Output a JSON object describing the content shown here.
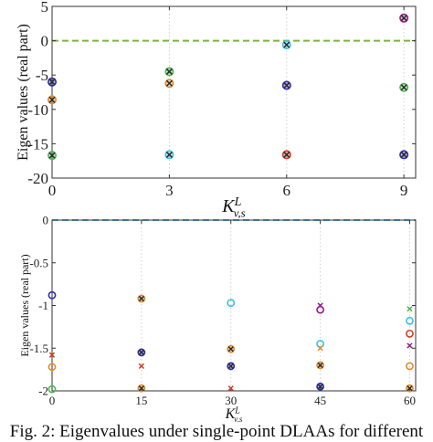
{
  "caption": "Fig. 2: Eigenvalues under single-point DLAAs for different",
  "colors": {
    "axis": "#333333",
    "threshold_top": "#7cb342",
    "threshold_bottom": "#4fb3e8",
    "blue": "#2c2ca8",
    "red": "#d23b1e",
    "green": "#4fb34f",
    "orange": "#e08a2a",
    "cyan": "#3fc0e0",
    "magenta": "#9b1c86"
  },
  "chart_data": [
    {
      "type": "scatter",
      "xlabel_main": "K",
      "xlabel_sup": "L",
      "xlabel_sub": "v,s",
      "ylabel": "Eigen values (real part)",
      "xlim": [
        0,
        9.3
      ],
      "ylim": [
        -20,
        5
      ],
      "xticks": [
        "0",
        "3",
        "6",
        "9"
      ],
      "yticks": [
        "5",
        "0",
        "-5",
        "-10",
        "-15",
        "-20"
      ],
      "threshold_y": 0,
      "points": [
        {
          "x": 0,
          "y": -6,
          "marker": "circle-x",
          "color": "blue"
        },
        {
          "x": 0,
          "y": -8.6,
          "marker": "circle-x",
          "color": "orange"
        },
        {
          "x": 0,
          "y": -16.7,
          "marker": "circle-x",
          "color": "green"
        },
        {
          "x": 3,
          "y": -4.5,
          "marker": "circle-x",
          "color": "green"
        },
        {
          "x": 3,
          "y": -6.2,
          "marker": "circle-x",
          "color": "orange"
        },
        {
          "x": 3,
          "y": -16.6,
          "marker": "circle-x",
          "color": "cyan"
        },
        {
          "x": 6,
          "y": -0.6,
          "marker": "circle-x",
          "color": "cyan"
        },
        {
          "x": 6,
          "y": -6.5,
          "marker": "circle-x",
          "color": "blue"
        },
        {
          "x": 6,
          "y": -16.6,
          "marker": "circle-x",
          "color": "red"
        },
        {
          "x": 9,
          "y": 3.3,
          "marker": "circle-x",
          "color": "magenta"
        },
        {
          "x": 9,
          "y": -6.8,
          "marker": "circle-x",
          "color": "green"
        },
        {
          "x": 9,
          "y": -16.6,
          "marker": "circle-x",
          "color": "blue"
        }
      ]
    },
    {
      "type": "scatter",
      "xlabel_main": "K",
      "xlabel_sup": "L",
      "xlabel_sub": "v,s",
      "ylabel": "Eigen values (real part)",
      "xlim": [
        0,
        61
      ],
      "ylim": [
        -2,
        0
      ],
      "xticks": [
        "0",
        "15",
        "30",
        "45",
        "60"
      ],
      "yticks": [
        "0",
        "-0.5",
        "-1",
        "-1.5",
        "-2"
      ],
      "threshold_y": 0,
      "points": [
        {
          "x": 0,
          "y": -0.88,
          "marker": "circle",
          "color": "blue"
        },
        {
          "x": 0,
          "y": -1.58,
          "marker": "x",
          "color": "red"
        },
        {
          "x": 0,
          "y": -1.72,
          "marker": "circle",
          "color": "orange"
        },
        {
          "x": 0,
          "y": -1.98,
          "marker": "circle",
          "color": "green"
        },
        {
          "x": 15,
          "y": -0.92,
          "marker": "circle-x",
          "color": "orange"
        },
        {
          "x": 15,
          "y": -1.55,
          "marker": "circle-x",
          "color": "blue"
        },
        {
          "x": 15,
          "y": -1.71,
          "marker": "x",
          "color": "red"
        },
        {
          "x": 15,
          "y": -1.97,
          "marker": "circle-x",
          "color": "orange"
        },
        {
          "x": 30,
          "y": -0.97,
          "marker": "circle",
          "color": "cyan"
        },
        {
          "x": 30,
          "y": -1.51,
          "marker": "circle-x",
          "color": "orange"
        },
        {
          "x": 30,
          "y": -1.71,
          "marker": "circle-x",
          "color": "blue"
        },
        {
          "x": 30,
          "y": -1.97,
          "marker": "x",
          "color": "red"
        },
        {
          "x": 45,
          "y": -1.0,
          "marker": "x",
          "color": "magenta"
        },
        {
          "x": 45,
          "y": -1.05,
          "marker": "circle",
          "color": "magenta"
        },
        {
          "x": 45,
          "y": -1.45,
          "marker": "circle",
          "color": "cyan"
        },
        {
          "x": 45,
          "y": -1.5,
          "marker": "x",
          "color": "orange"
        },
        {
          "x": 45,
          "y": -1.7,
          "marker": "circle-x",
          "color": "orange"
        },
        {
          "x": 45,
          "y": -1.95,
          "marker": "circle-x",
          "color": "blue"
        },
        {
          "x": 60,
          "y": -1.04,
          "marker": "x",
          "color": "green"
        },
        {
          "x": 60,
          "y": -1.18,
          "marker": "circle",
          "color": "cyan"
        },
        {
          "x": 60,
          "y": -1.33,
          "marker": "circle",
          "color": "red"
        },
        {
          "x": 60,
          "y": -1.47,
          "marker": "x",
          "color": "magenta"
        },
        {
          "x": 60,
          "y": -1.71,
          "marker": "circle",
          "color": "orange"
        },
        {
          "x": 60,
          "y": -1.97,
          "marker": "circle-x",
          "color": "orange"
        }
      ]
    }
  ]
}
